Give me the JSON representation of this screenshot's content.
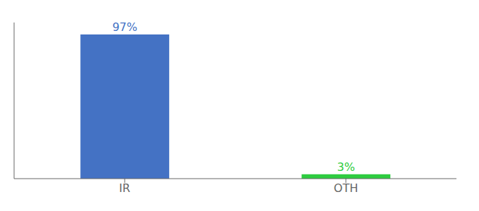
{
  "chart_data": {
    "type": "bar",
    "categories": [
      "IR",
      "OTH"
    ],
    "values": [
      97,
      3
    ],
    "value_labels": [
      "97%",
      "3%"
    ],
    "colors": [
      "#4472c4",
      "#2ecc40"
    ],
    "ylim": [
      0,
      105
    ],
    "data_labels": true,
    "tick_labels": "x",
    "grid": false
  }
}
